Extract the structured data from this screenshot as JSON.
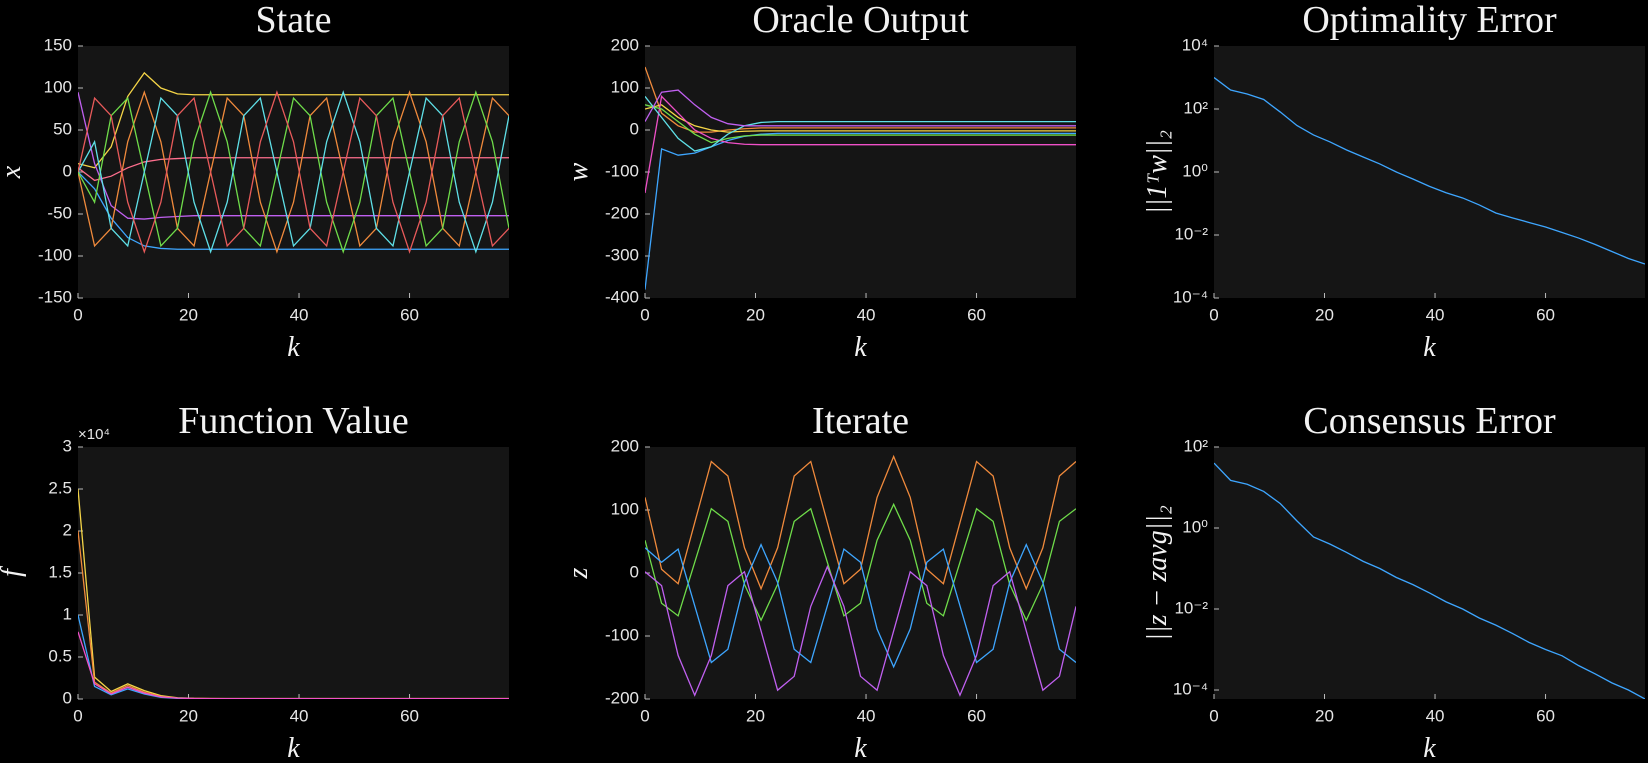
{
  "chart_data": [
    {
      "type": "line",
      "title": "State",
      "xlabel": "k",
      "ylabel": "x",
      "x": [
        0,
        3,
        6,
        9,
        12,
        15,
        18,
        21,
        24,
        27,
        30,
        33,
        36,
        39,
        42,
        45,
        48,
        51,
        54,
        57,
        60,
        63,
        66,
        69,
        72,
        75,
        78
      ],
      "xlim": [
        0,
        78
      ],
      "xticks": [
        0,
        20,
        40,
        60
      ],
      "ylim": [
        -150,
        150
      ],
      "yticks": [
        -150,
        -100,
        -50,
        0,
        50,
        100,
        150
      ],
      "series": [
        {
          "color": "#3ea6ff",
          "values": [
            0,
            -20,
            -55,
            -78,
            -88,
            -91,
            -92,
            -92,
            -92,
            -92,
            -92,
            -92,
            -92,
            -92,
            -92,
            -92,
            -92,
            -92,
            -92,
            -92,
            -92,
            -92,
            -92,
            -92,
            -92,
            -92,
            -92
          ]
        },
        {
          "color": "#f5d547",
          "values": [
            10,
            5,
            30,
            90,
            118,
            100,
            93,
            92,
            92,
            92,
            92,
            92,
            92,
            92,
            92,
            92,
            92,
            92,
            92,
            92,
            92,
            92,
            92,
            92,
            92,
            92,
            92
          ]
        },
        {
          "color": "#ff6f8e",
          "values": [
            5,
            -10,
            -5,
            5,
            12,
            15,
            16,
            17,
            17,
            17,
            17,
            17,
            17,
            17,
            17,
            17,
            17,
            17,
            17,
            17,
            17,
            17,
            17,
            17,
            17,
            17,
            17
          ]
        },
        {
          "color": "#c060f0",
          "values": [
            95,
            10,
            -40,
            -55,
            -56,
            -54,
            -53,
            -52,
            -52,
            -52,
            -52,
            -52,
            -52,
            -52,
            -52,
            -52,
            -52,
            -52,
            -52,
            -52,
            -52,
            -52,
            -52,
            -52,
            -52,
            -52,
            -52
          ]
        },
        {
          "color": "#f08a3c",
          "values": [
            0,
            -88,
            -67,
            36,
            95,
            36,
            -67,
            -88,
            0,
            88,
            67,
            -36,
            -95,
            -36,
            67,
            88,
            0,
            -88,
            -67,
            36,
            95,
            36,
            -67,
            -88,
            0,
            88,
            67
          ]
        },
        {
          "color": "#6fdc4a",
          "values": [
            0,
            -36,
            67,
            88,
            0,
            -88,
            -67,
            36,
            95,
            36,
            -67,
            -88,
            0,
            88,
            67,
            -36,
            -95,
            -36,
            67,
            88,
            0,
            -88,
            -67,
            36,
            95,
            36,
            -67
          ]
        },
        {
          "color": "#5fe0e8",
          "values": [
            0,
            36,
            -67,
            -88,
            0,
            88,
            67,
            -36,
            -95,
            -36,
            67,
            88,
            0,
            -88,
            -67,
            36,
            95,
            36,
            -67,
            -88,
            0,
            88,
            67,
            -36,
            -95,
            -36,
            67
          ]
        },
        {
          "color": "#e85a5a",
          "values": [
            0,
            88,
            67,
            -36,
            -95,
            -36,
            67,
            88,
            0,
            -88,
            -67,
            36,
            95,
            36,
            -67,
            -88,
            0,
            88,
            67,
            -36,
            -95,
            -36,
            67,
            88,
            0,
            -88,
            -67
          ]
        }
      ]
    },
    {
      "type": "line",
      "title": "Oracle Output",
      "xlabel": "k",
      "ylabel": "w",
      "x": [
        0,
        3,
        6,
        9,
        12,
        15,
        18,
        21,
        24,
        27,
        30,
        33,
        36,
        39,
        42,
        45,
        48,
        51,
        54,
        57,
        60,
        63,
        66,
        69,
        72,
        75,
        78
      ],
      "xlim": [
        0,
        78
      ],
      "xticks": [
        0,
        20,
        40,
        60
      ],
      "ylim": [
        -400,
        200
      ],
      "yticks": [
        -400,
        -300,
        -200,
        -100,
        0,
        100,
        200
      ],
      "series": [
        {
          "color": "#3ea6ff",
          "values": [
            -380,
            -45,
            -60,
            -55,
            -40,
            -25,
            -15,
            -10,
            -8,
            -8,
            -8,
            -8,
            -8,
            -8,
            -8,
            -8,
            -8,
            -8,
            -8,
            -8,
            -8,
            -8,
            -8,
            -8,
            -8,
            -8,
            -8
          ]
        },
        {
          "color": "#f08a3c",
          "values": [
            150,
            40,
            10,
            -5,
            -5,
            0,
            3,
            5,
            5,
            5,
            5,
            5,
            5,
            5,
            5,
            5,
            5,
            5,
            5,
            5,
            5,
            5,
            5,
            5,
            5,
            5,
            5
          ]
        },
        {
          "color": "#f5d547",
          "values": [
            50,
            60,
            30,
            10,
            0,
            -5,
            -3,
            -2,
            -2,
            -2,
            -2,
            -2,
            -2,
            -2,
            -2,
            -2,
            -2,
            -2,
            -2,
            -2,
            -2,
            -2,
            -2,
            -2,
            -2,
            -2,
            -2
          ]
        },
        {
          "color": "#f050c8",
          "values": [
            -150,
            80,
            40,
            0,
            -20,
            -30,
            -34,
            -35,
            -35,
            -35,
            -35,
            -35,
            -35,
            -35,
            -35,
            -35,
            -35,
            -35,
            -35,
            -35,
            -35,
            -35,
            -35,
            -35,
            -35,
            -35,
            -35
          ]
        },
        {
          "color": "#6fdc4a",
          "values": [
            60,
            50,
            20,
            -10,
            -30,
            -20,
            -14,
            -12,
            -12,
            -12,
            -12,
            -12,
            -12,
            -12,
            -12,
            -12,
            -12,
            -12,
            -12,
            -12,
            -12,
            -12,
            -12,
            -12,
            -12,
            -12,
            -12
          ]
        },
        {
          "color": "#5fe0e8",
          "values": [
            80,
            30,
            -20,
            -50,
            -40,
            -10,
            10,
            18,
            20,
            20,
            20,
            20,
            20,
            20,
            20,
            20,
            20,
            20,
            20,
            20,
            20,
            20,
            20,
            20,
            20,
            20,
            20
          ]
        },
        {
          "color": "#c060f0",
          "values": [
            20,
            90,
            95,
            60,
            30,
            15,
            10,
            10,
            10,
            10,
            10,
            10,
            10,
            10,
            10,
            10,
            10,
            10,
            10,
            10,
            10,
            10,
            10,
            10,
            10,
            10,
            10
          ]
        }
      ]
    },
    {
      "type": "line",
      "title": "Optimality Error",
      "xlabel": "k",
      "ylabel": "||1ᵀw||₂",
      "log_y": true,
      "x": [
        0,
        3,
        6,
        9,
        12,
        15,
        18,
        21,
        24,
        27,
        30,
        33,
        36,
        39,
        42,
        45,
        48,
        51,
        54,
        57,
        60,
        63,
        66,
        69,
        72,
        75,
        78
      ],
      "xlim": [
        0,
        78
      ],
      "xticks": [
        0,
        20,
        40,
        60
      ],
      "ylim": [
        0.0001,
        10000
      ],
      "yticks": [
        {
          "value": 0.0001,
          "label": "10⁻⁴"
        },
        {
          "value": 0.01,
          "label": "10⁻²"
        },
        {
          "value": 1,
          "label": "10⁰"
        },
        {
          "value": 100,
          "label": "10²"
        },
        {
          "value": 10000,
          "label": "10⁴"
        }
      ],
      "series": [
        {
          "color": "#3ea6ff",
          "values": [
            1000,
            400,
            300,
            200,
            80,
            30,
            15,
            9,
            5,
            3,
            1.8,
            1,
            0.6,
            0.35,
            0.22,
            0.15,
            0.09,
            0.05,
            0.035,
            0.025,
            0.018,
            0.012,
            0.008,
            0.005,
            0.003,
            0.0018,
            0.0012
          ]
        }
      ]
    },
    {
      "type": "line",
      "title": "Function Value",
      "xlabel": "k",
      "ylabel": "f",
      "y_exponent_label": "×10⁴",
      "x": [
        0,
        3,
        6,
        9,
        12,
        15,
        18,
        21,
        24,
        27,
        30,
        33,
        36,
        39,
        42,
        45,
        48,
        51,
        54,
        57,
        60,
        63,
        66,
        69,
        72,
        75,
        78
      ],
      "xlim": [
        0,
        78
      ],
      "xticks": [
        0,
        20,
        40,
        60
      ],
      "ylim": [
        0,
        30000
      ],
      "yticks": [
        0,
        {
          "value": 5000,
          "label": "0.5"
        },
        {
          "value": 10000,
          "label": "1"
        },
        {
          "value": 15000,
          "label": "1.5"
        },
        {
          "value": 20000,
          "label": "2"
        },
        {
          "value": 25000,
          "label": "2.5"
        },
        {
          "value": 30000,
          "label": "3"
        }
      ],
      "series": [
        {
          "color": "#f5d547",
          "values": [
            25000,
            2600,
            900,
            1800,
            1000,
            400,
            150,
            80,
            60,
            50,
            50,
            50,
            50,
            50,
            50,
            50,
            50,
            50,
            50,
            50,
            50,
            50,
            50,
            50,
            50,
            50,
            50
          ]
        },
        {
          "color": "#f08a3c",
          "values": [
            20000,
            2000,
            700,
            1600,
            800,
            300,
            120,
            60,
            50,
            40,
            40,
            40,
            40,
            40,
            40,
            40,
            40,
            40,
            40,
            40,
            40,
            40,
            40,
            40,
            40,
            40,
            40
          ]
        },
        {
          "color": "#3ea6ff",
          "values": [
            10000,
            1500,
            500,
            1200,
            600,
            200,
            80,
            40,
            30,
            30,
            30,
            30,
            30,
            30,
            30,
            30,
            30,
            30,
            30,
            30,
            30,
            30,
            30,
            30,
            30,
            30,
            30
          ]
        },
        {
          "color": "#f050c8",
          "values": [
            8000,
            1800,
            600,
            1400,
            700,
            250,
            100,
            50,
            40,
            40,
            40,
            40,
            40,
            40,
            40,
            40,
            40,
            40,
            40,
            40,
            40,
            40,
            40,
            40,
            40,
            40,
            40
          ]
        }
      ]
    },
    {
      "type": "line",
      "title": "Iterate",
      "xlabel": "k",
      "ylabel": "z",
      "x": [
        0,
        3,
        6,
        9,
        12,
        15,
        18,
        21,
        24,
        27,
        30,
        33,
        36,
        39,
        42,
        45,
        48,
        51,
        54,
        57,
        60,
        63,
        66,
        69,
        72,
        75,
        78
      ],
      "xlim": [
        0,
        78
      ],
      "xticks": [
        0,
        20,
        40,
        60
      ],
      "ylim": [
        -200,
        200
      ],
      "yticks": [
        -200,
        -100,
        0,
        100,
        200
      ],
      "series": [
        {
          "color": "#f08a3c",
          "values": [
            120,
            6,
            -17,
            80,
            177,
            154,
            40,
            -25,
            40,
            154,
            177,
            80,
            -17,
            6,
            120,
            185,
            120,
            6,
            -17,
            80,
            177,
            154,
            40,
            -25,
            40,
            154,
            177
          ]
        },
        {
          "color": "#6fdc4a",
          "values": [
            52,
            -48,
            -68,
            17,
            102,
            82,
            -18,
            -75,
            -18,
            82,
            102,
            17,
            -68,
            -48,
            52,
            109,
            52,
            -48,
            -68,
            17,
            102,
            82,
            -18,
            -75,
            -18,
            82,
            102
          ]
        },
        {
          "color": "#3ea6ff",
          "values": [
            40,
            17,
            38,
            -52,
            -142,
            -121,
            -15,
            45,
            -15,
            -121,
            -142,
            -52,
            38,
            17,
            -89,
            -149,
            -89,
            17,
            38,
            -52,
            -142,
            -121,
            -15,
            45,
            -15,
            -121,
            -142
          ]
        },
        {
          "color": "#c060f0",
          "values": [
            2,
            -20,
            -131,
            -194,
            -131,
            -20,
            2,
            -92,
            -186,
            -164,
            -53,
            10,
            -53,
            -164,
            -186,
            -92,
            2,
            -20,
            -131,
            -194,
            -131,
            -20,
            2,
            -92,
            -186,
            -164,
            -53
          ]
        }
      ]
    },
    {
      "type": "line",
      "title": "Consensus Error",
      "xlabel": "k",
      "ylabel": "||z − zavg||₂",
      "log_y": true,
      "x": [
        0,
        3,
        6,
        9,
        12,
        15,
        18,
        21,
        24,
        27,
        30,
        33,
        36,
        39,
        42,
        45,
        48,
        51,
        54,
        57,
        60,
        63,
        66,
        69,
        72,
        75,
        78
      ],
      "xlim": [
        0,
        78
      ],
      "xticks": [
        0,
        20,
        40,
        60
      ],
      "ylim": [
        6e-05,
        100
      ],
      "yticks": [
        {
          "value": 0.0001,
          "label": "10⁻⁴"
        },
        {
          "value": 0.01,
          "label": "10⁻²"
        },
        {
          "value": 1,
          "label": "10⁰"
        },
        {
          "value": 100,
          "label": "10²"
        }
      ],
      "series": [
        {
          "color": "#3ea6ff",
          "values": [
            40,
            15,
            12,
            8,
            4,
            1.5,
            0.6,
            0.4,
            0.25,
            0.15,
            0.1,
            0.06,
            0.04,
            0.025,
            0.015,
            0.01,
            0.006,
            0.004,
            0.0025,
            0.0015,
            0.001,
            0.0007,
            0.0004,
            0.00025,
            0.00015,
            0.0001,
            6e-05
          ]
        }
      ]
    }
  ]
}
